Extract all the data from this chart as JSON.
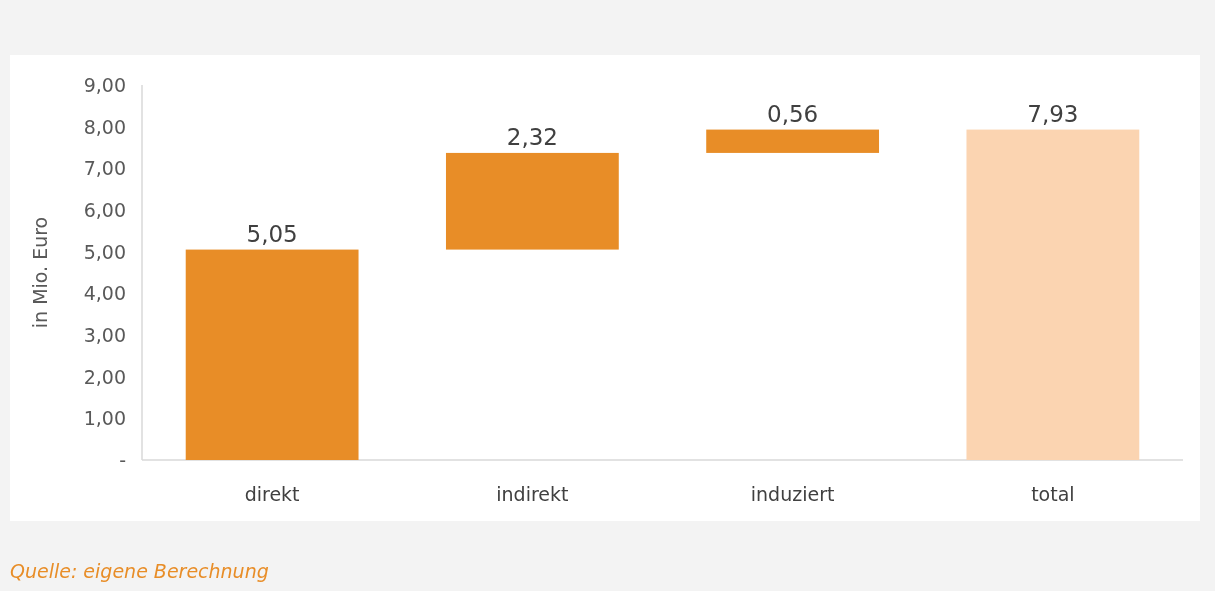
{
  "chart_data": {
    "type": "bar",
    "ylabel": "in Mio. Euro",
    "categories": [
      "direkt",
      "indirekt",
      "induziert",
      "total"
    ],
    "values": [
      5.05,
      2.32,
      0.56,
      7.93
    ],
    "base": [
      0,
      5.05,
      7.37,
      0
    ],
    "colors": [
      "#e88d27",
      "#e88d27",
      "#e88d27",
      "#fbd4b1"
    ],
    "value_labels": [
      "5,05",
      "2,32",
      "0,56",
      "7,93"
    ],
    "ylim": [
      0,
      9
    ],
    "yticks": [
      {
        "value": 0,
        "label": "-"
      },
      {
        "value": 1,
        "label": "1,00"
      },
      {
        "value": 2,
        "label": "2,00"
      },
      {
        "value": 3,
        "label": "3,00"
      },
      {
        "value": 4,
        "label": "4,00"
      },
      {
        "value": 5,
        "label": "5,00"
      },
      {
        "value": 6,
        "label": "6,00"
      },
      {
        "value": 7,
        "label": "7,00"
      },
      {
        "value": 8,
        "label": "8,00"
      },
      {
        "value": 9,
        "label": "9,00"
      }
    ],
    "annotations": [
      "Quelle: eigene Berechnung"
    ]
  }
}
